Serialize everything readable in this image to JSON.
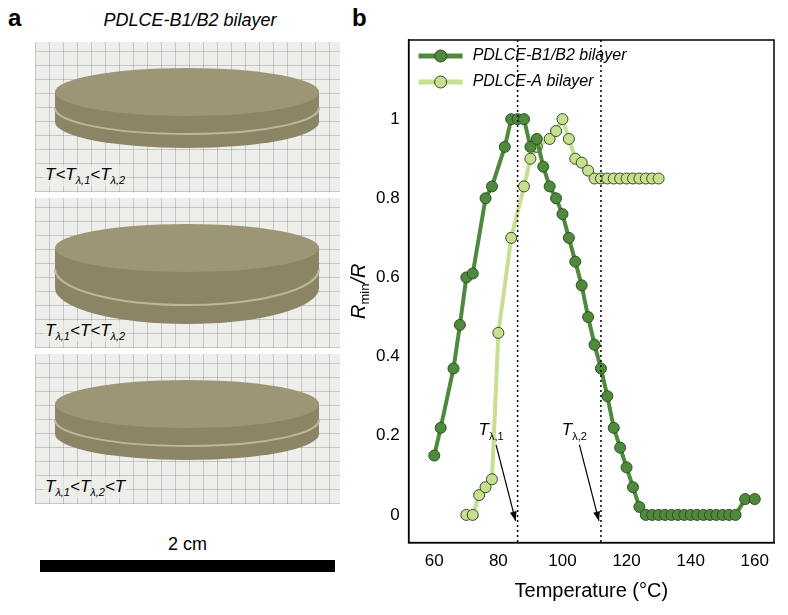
{
  "panel_labels": [
    "a",
    "b"
  ],
  "photo_panel": {
    "title": "PDLCE-B1/B2 bilayer",
    "captions": [
      "T<Tλ,1<Tλ,2",
      "Tλ,1<T<Tλ,2",
      "Tλ,1<Tλ,2<T"
    ],
    "scale_bar": "2 cm"
  },
  "chart_data": {
    "type": "line",
    "x_label": "Temperature (°C)",
    "y_label": "Rmin/R",
    "xlim": [
      52,
      166
    ],
    "xticks": [
      60,
      80,
      100,
      120,
      140,
      160
    ],
    "ylim": [
      -0.07,
      1.2
    ],
    "yticks": [
      0,
      0.2,
      0.4,
      0.6,
      0.8,
      1
    ],
    "grid": false,
    "legend": "upper left",
    "marker": "circle",
    "series": [
      {
        "name": "PDLCE-B1/B2 bilayer",
        "color": "#4f8a3c",
        "x": [
          60,
          62,
          66,
          68,
          70,
          72,
          76,
          78,
          82,
          84,
          86,
          88,
          90,
          92,
          94,
          96,
          98,
          100,
          102,
          104,
          106,
          108,
          110,
          112,
          114,
          116,
          118,
          120,
          122,
          124,
          126,
          128,
          130,
          132,
          134,
          136,
          138,
          140,
          142,
          144,
          146,
          148,
          150,
          152,
          154,
          157,
          160
        ],
        "values": [
          0.15,
          0.22,
          0.37,
          0.48,
          0.6,
          0.61,
          0.8,
          0.83,
          0.93,
          1,
          1,
          1,
          0.93,
          0.95,
          0.88,
          0.83,
          0.8,
          0.76,
          0.7,
          0.64,
          0.58,
          0.5,
          0.43,
          0.37,
          0.3,
          0.22,
          0.17,
          0.12,
          0.07,
          0.02,
          0,
          0,
          0,
          0,
          0,
          0,
          0,
          0,
          0,
          0,
          0,
          0,
          0,
          0,
          0,
          0.04,
          0.04
        ]
      },
      {
        "name": "PDLCE-A bilayer",
        "color": "#c8df8f",
        "x": [
          70,
          72,
          74,
          76,
          78,
          80,
          84,
          88,
          90,
          92,
          96,
          98,
          100,
          102,
          104,
          106,
          108,
          110,
          112,
          114,
          116,
          118,
          120,
          122,
          124,
          126,
          128,
          130
        ],
        "values": [
          0,
          0,
          0.05,
          0.07,
          0.09,
          0.46,
          0.7,
          0.83,
          0.9,
          0.93,
          0.95,
          0.97,
          1,
          0.95,
          0.9,
          0.89,
          0.87,
          0.85,
          0.85,
          0.85,
          0.85,
          0.85,
          0.85,
          0.85,
          0.85,
          0.85,
          0.85,
          0.85
        ]
      }
    ],
    "annotations": [
      {
        "text": "Tλ,1",
        "x": 86
      },
      {
        "text": "Tλ,2",
        "x": 112
      }
    ]
  }
}
